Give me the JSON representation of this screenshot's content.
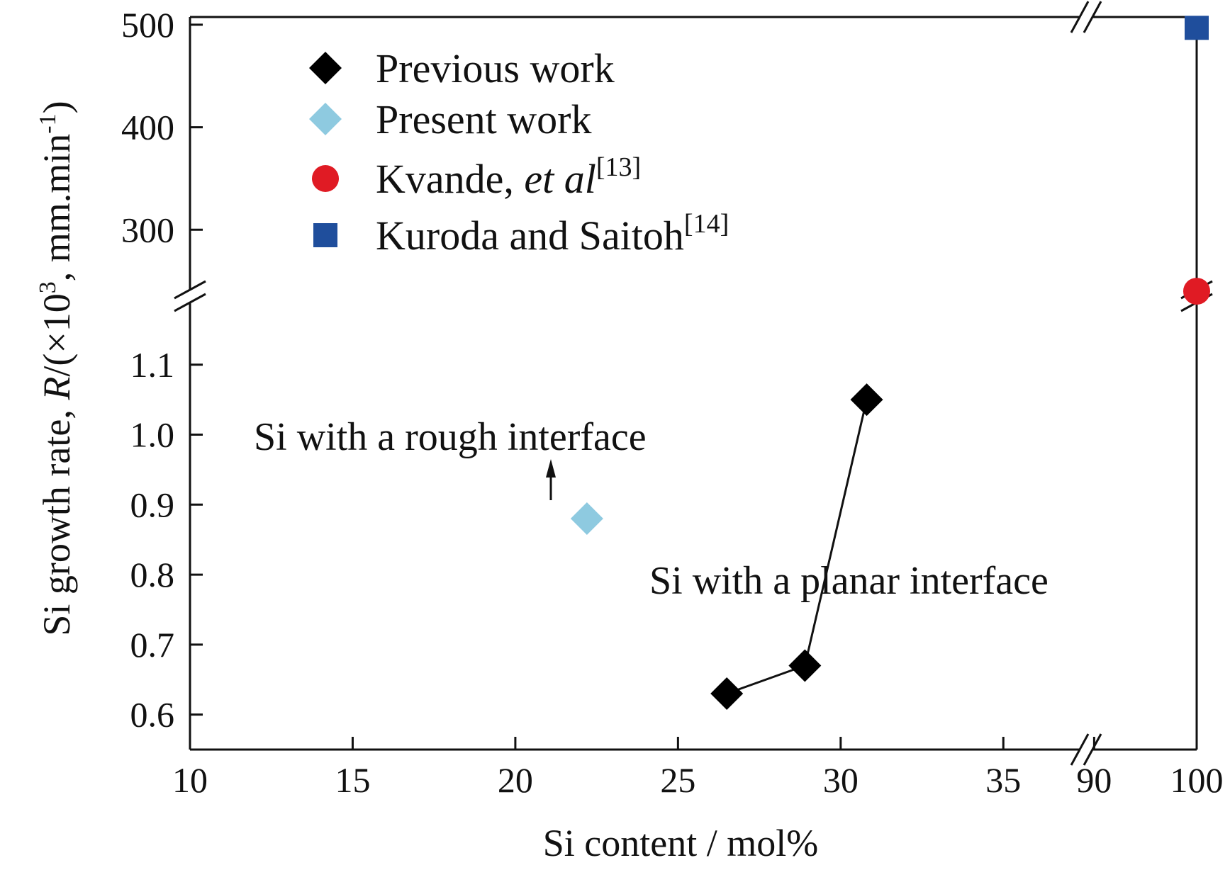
{
  "chart_data": {
    "type": "scatter",
    "xlabel": "Si content / mol%",
    "ylabel": {
      "prefix": "Si growth rate, ",
      "symbol": "R",
      "mid": "/(×10",
      "exp": "3",
      "mid2": ", mm.min",
      "exp2": "-1",
      "suffix": ")"
    },
    "x_axis": {
      "broken": true,
      "segments": [
        {
          "range": [
            10,
            37.5
          ],
          "ticks": [
            10,
            15,
            20,
            25,
            30,
            35
          ]
        },
        {
          "range": [
            87,
            100
          ],
          "ticks": [
            90,
            100
          ]
        }
      ]
    },
    "y_axis": {
      "broken": true,
      "segments": [
        {
          "range": [
            0.55,
            1.2
          ],
          "ticks": [
            0.6,
            0.7,
            0.8,
            0.9,
            1.0,
            1.1
          ],
          "tick_labels": [
            "0.6",
            "0.7",
            "0.8",
            "0.9",
            "1.0",
            "1.1"
          ]
        },
        {
          "range": [
            220,
            520
          ],
          "ticks": [
            300,
            400,
            500
          ],
          "tick_labels": [
            "300",
            "400",
            "500"
          ]
        }
      ]
    },
    "grid": false,
    "legend_position": "top-left",
    "series": [
      {
        "name": "Previous work",
        "marker": "diamond",
        "color": "#000000",
        "line": true,
        "points": [
          {
            "x": 26.5,
            "y": 0.63
          },
          {
            "x": 28.9,
            "y": 0.67
          },
          {
            "x": 30.8,
            "y": 1.05
          }
        ]
      },
      {
        "name": "Present work",
        "marker": "diamond",
        "color": "#8ecae0",
        "line": false,
        "points": [
          {
            "x": 22.2,
            "y": 0.88
          }
        ]
      },
      {
        "name": "Kvande, ",
        "name_italic": "et al",
        "name_ref": "[13]",
        "marker": "circle",
        "color": "#e01b24",
        "line": false,
        "points": [
          {
            "x": 100,
            "y": 240
          }
        ]
      },
      {
        "name": "Kuroda and Saitoh",
        "name_ref": "[14]",
        "marker": "square",
        "color": "#1f4e9c",
        "line": false,
        "points": [
          {
            "x": 100,
            "y": 497
          }
        ]
      }
    ],
    "annotations": [
      {
        "text": "Si with a rough interface",
        "arrow": true
      },
      {
        "text": "Si with a planar interface",
        "arrow": false
      }
    ]
  }
}
